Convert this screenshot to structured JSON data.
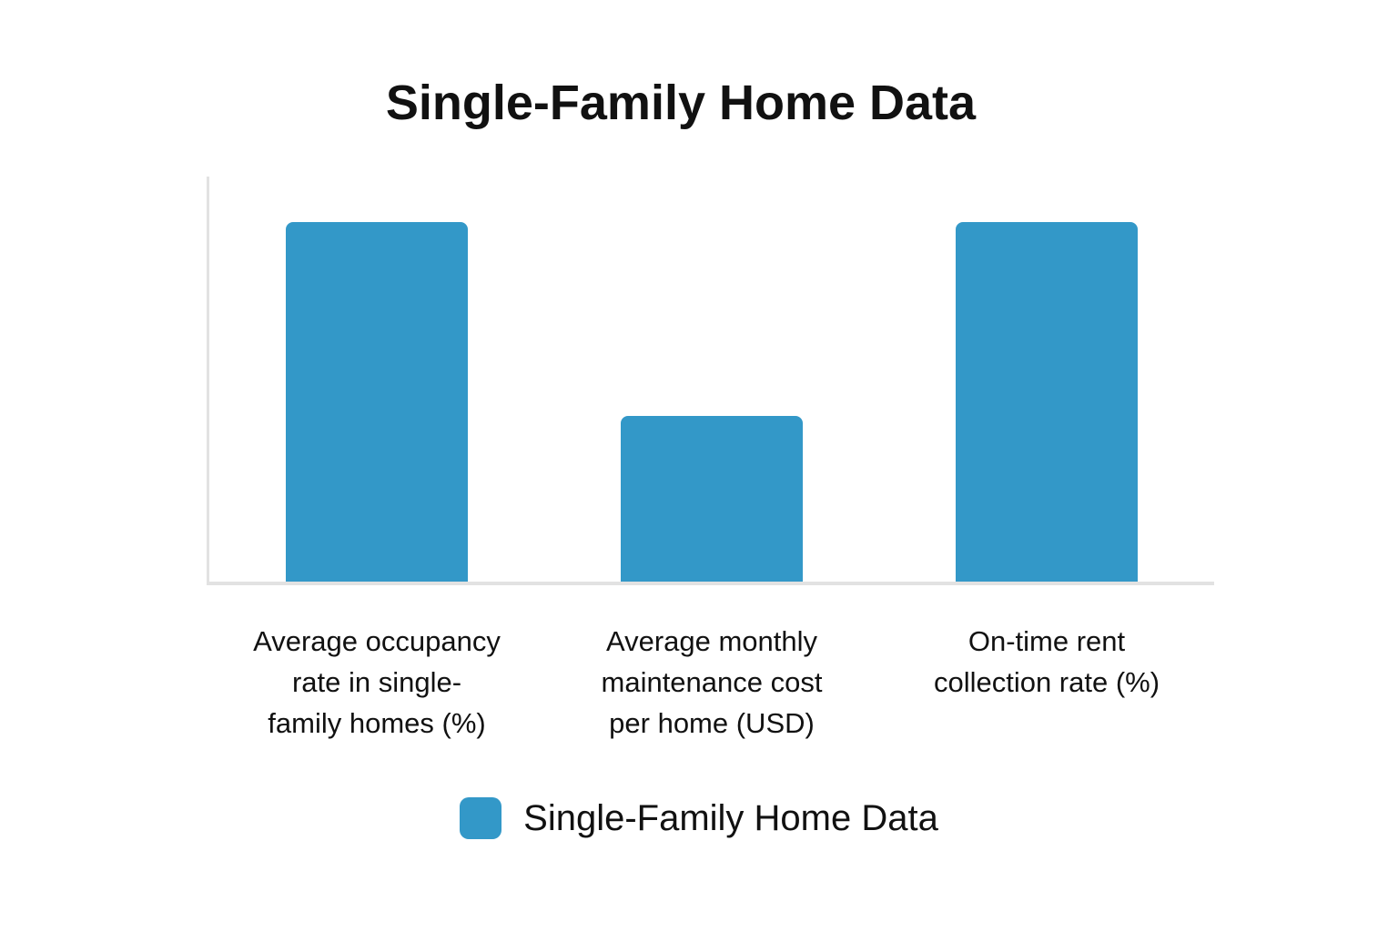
{
  "colors": {
    "bar": "#3398c8",
    "axis": "#e2e2e2",
    "text": "#111111",
    "background": "#ffffff"
  },
  "chart_data": {
    "type": "bar",
    "title": "Single-Family Home Data",
    "categories": [
      "Average occupancy rate in single-family homes (%)",
      "Average monthly maintenance cost per home (USD)",
      "On-time rent collection rate (%)"
    ],
    "values": [
      89,
      41,
      89
    ],
    "series": [
      {
        "name": "Single-Family Home Data",
        "values": [
          89,
          41,
          89
        ]
      }
    ],
    "xlabel": "",
    "ylabel": "",
    "ylim": [
      0,
      100
    ],
    "grid": false,
    "y_tick_labels": [],
    "value_labels_shown": false,
    "legend_position": "bottom",
    "bar_color": "#3398c8"
  },
  "x_labels": [
    {
      "text": "Average occupancy\nrate in single-\nfamily homes (%)"
    },
    {
      "text": "Average monthly\nmaintenance cost\nper home (USD)"
    },
    {
      "text": "On-time rent\ncollection rate (%)"
    }
  ],
  "legend": {
    "label": "Single-Family Home Data",
    "swatch_color": "#3398c8"
  }
}
